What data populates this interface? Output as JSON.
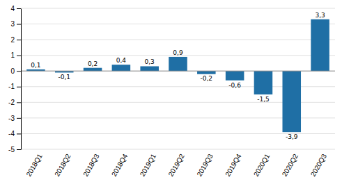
{
  "chart_data": {
    "type": "bar",
    "categories": [
      "2018Q1",
      "2018Q2",
      "2018Q3",
      "2018Q4",
      "2019Q1",
      "2019Q2",
      "2019Q3",
      "2019Q4",
      "2020Q1",
      "2020Q2",
      "2020Q3"
    ],
    "values": [
      0.1,
      -0.1,
      0.2,
      0.4,
      0.3,
      0.9,
      -0.2,
      -0.6,
      -1.5,
      -3.9,
      3.3
    ],
    "value_labels": [
      "0,1",
      "-0,1",
      "0,2",
      "0,4",
      "0,3",
      "0,9",
      "-0,2",
      "-0,6",
      "-1,5",
      "-3,9",
      "3,3"
    ],
    "color": "#1f6fa5",
    "ylim": [
      -5,
      4
    ],
    "yticks": [
      -5,
      -4,
      -3,
      -2,
      -1,
      0,
      1,
      2,
      3,
      4
    ],
    "grid": true,
    "data_labels": true
  }
}
